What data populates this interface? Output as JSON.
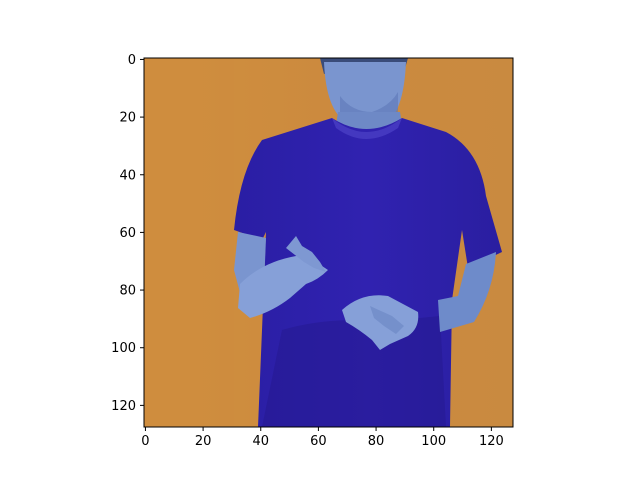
{
  "image": {
    "subject": "person in blue t-shirt with hands raised in front of torso",
    "colors": {
      "background": "#CC8A3E",
      "background_light": "#D89A4A",
      "shirt": "#2B1FA8",
      "shirt_shadow": "#1E1680",
      "skin": "#6A86C8",
      "skin_light": "#8FA6D8",
      "hair": "#3A4C7A"
    }
  },
  "chart_data": {
    "type": "image",
    "xlim": [
      -0.5,
      127.5
    ],
    "ylim": [
      127.5,
      -0.5
    ],
    "x_ticks": [
      0,
      20,
      40,
      60,
      80,
      100,
      120
    ],
    "y_ticks": [
      0,
      20,
      40,
      60,
      80,
      100,
      120
    ],
    "x_tick_labels": [
      "0",
      "20",
      "40",
      "60",
      "80",
      "100",
      "120"
    ],
    "y_tick_labels": [
      "0",
      "20",
      "40",
      "60",
      "80",
      "100",
      "120"
    ]
  }
}
